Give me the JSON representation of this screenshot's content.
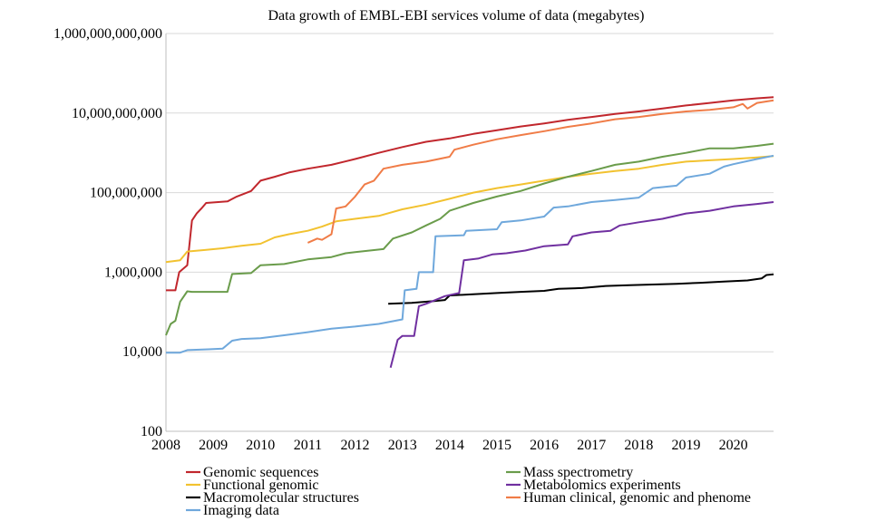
{
  "chart_data": {
    "type": "line",
    "title": "Data growth of EMBL-EBI services volume of data (megabytes)",
    "xlabel": "",
    "ylabel": "",
    "y_scale": "log",
    "ylim": [
      100,
      1000000000000
    ],
    "xlim": [
      2008,
      2020.85
    ],
    "grid": true,
    "legend_position": "bottom",
    "y_ticks": [
      {
        "value": 100,
        "label": "100"
      },
      {
        "value": 10000,
        "label": "10,000"
      },
      {
        "value": 1000000,
        "label": "1,000,000"
      },
      {
        "value": 100000000,
        "label": "100,000,000"
      },
      {
        "value": 10000000000,
        "label": "10,000,000,000"
      },
      {
        "value": 1000000000000,
        "label": "1,000,000,000,000"
      }
    ],
    "x_ticks": [
      {
        "value": 2008,
        "label": "2008"
      },
      {
        "value": 2009,
        "label": "2009"
      },
      {
        "value": 2010,
        "label": "2010"
      },
      {
        "value": 2011,
        "label": "2011"
      },
      {
        "value": 2012,
        "label": "2012"
      },
      {
        "value": 2013,
        "label": "2013"
      },
      {
        "value": 2014,
        "label": "2014"
      },
      {
        "value": 2015,
        "label": "2015"
      },
      {
        "value": 2016,
        "label": "2016"
      },
      {
        "value": 2017,
        "label": "2017"
      },
      {
        "value": 2018,
        "label": "2018"
      },
      {
        "value": 2019,
        "label": "2019"
      },
      {
        "value": 2020,
        "label": "2020"
      }
    ],
    "series": [
      {
        "name": "Genomic sequences",
        "color": "#c1272d",
        "points": [
          [
            2008,
            350000
          ],
          [
            2008.2,
            350000
          ],
          [
            2008.28,
            1000000
          ],
          [
            2008.45,
            1500000
          ],
          [
            2008.55,
            20000000
          ],
          [
            2008.65,
            30000000
          ],
          [
            2008.75,
            40000000
          ],
          [
            2008.85,
            55000000
          ],
          [
            2009.3,
            60000000
          ],
          [
            2009.5,
            80000000
          ],
          [
            2009.8,
            110000000
          ],
          [
            2010.0,
            200000000
          ],
          [
            2010.3,
            250000000
          ],
          [
            2010.6,
            320000000
          ],
          [
            2011.0,
            400000000
          ],
          [
            2011.5,
            500000000
          ],
          [
            2012.0,
            700000000
          ],
          [
            2012.5,
            1000000000
          ],
          [
            2013.0,
            1400000000
          ],
          [
            2013.5,
            1900000000
          ],
          [
            2014.0,
            2300000000
          ],
          [
            2014.5,
            3000000000
          ],
          [
            2015.0,
            3700000000
          ],
          [
            2015.5,
            4600000000
          ],
          [
            2016.0,
            5500000000
          ],
          [
            2016.5,
            6800000000
          ],
          [
            2017.0,
            8000000000
          ],
          [
            2017.5,
            9500000000
          ],
          [
            2018.0,
            11000000000
          ],
          [
            2018.5,
            13000000000
          ],
          [
            2019.0,
            15500000000
          ],
          [
            2019.5,
            18000000000
          ],
          [
            2020.0,
            21000000000
          ],
          [
            2020.5,
            23500000000
          ],
          [
            2020.85,
            25000000000
          ]
        ]
      },
      {
        "name": "Functional genomic",
        "color": "#f2c230",
        "points": [
          [
            2008,
            1800000
          ],
          [
            2008.3,
            2000000
          ],
          [
            2008.45,
            3300000
          ],
          [
            2008.8,
            3600000
          ],
          [
            2009.2,
            4000000
          ],
          [
            2009.6,
            4600000
          ],
          [
            2010.0,
            5200000
          ],
          [
            2010.3,
            7500000
          ],
          [
            2010.6,
            9000000
          ],
          [
            2011.0,
            11000000
          ],
          [
            2011.3,
            14000000
          ],
          [
            2011.6,
            19000000
          ],
          [
            2012.0,
            22000000
          ],
          [
            2012.5,
            26000000
          ],
          [
            2013.0,
            38000000
          ],
          [
            2013.5,
            50000000
          ],
          [
            2014.0,
            70000000
          ],
          [
            2014.5,
            100000000
          ],
          [
            2015.0,
            130000000
          ],
          [
            2015.5,
            160000000
          ],
          [
            2016.0,
            200000000
          ],
          [
            2016.5,
            250000000
          ],
          [
            2017.0,
            300000000
          ],
          [
            2017.5,
            350000000
          ],
          [
            2018.0,
            400000000
          ],
          [
            2018.5,
            500000000
          ],
          [
            2019.0,
            600000000
          ],
          [
            2019.5,
            650000000
          ],
          [
            2020.0,
            700000000
          ],
          [
            2020.5,
            770000000
          ],
          [
            2020.85,
            830000000
          ]
        ]
      },
      {
        "name": "Macromolecular structures",
        "color": "#000000",
        "points": [
          [
            2012.7,
            160000
          ],
          [
            2013.2,
            170000
          ],
          [
            2013.7,
            190000
          ],
          [
            2013.9,
            200000
          ],
          [
            2014.0,
            260000
          ],
          [
            2014.5,
            280000
          ],
          [
            2015.0,
            300000
          ],
          [
            2015.5,
            320000
          ],
          [
            2016.0,
            340000
          ],
          [
            2016.3,
            380000
          ],
          [
            2016.8,
            400000
          ],
          [
            2017.3,
            450000
          ],
          [
            2017.8,
            470000
          ],
          [
            2018.3,
            490000
          ],
          [
            2018.8,
            510000
          ],
          [
            2019.3,
            540000
          ],
          [
            2019.8,
            580000
          ],
          [
            2020.3,
            620000
          ],
          [
            2020.6,
            700000
          ],
          [
            2020.7,
            850000
          ],
          [
            2020.85,
            880000
          ]
        ]
      },
      {
        "name": "Imaging data",
        "color": "#6fa8dc",
        "points": [
          [
            2008,
            9500
          ],
          [
            2008.3,
            9500
          ],
          [
            2008.45,
            11000
          ],
          [
            2008.9,
            11500
          ],
          [
            2009.2,
            12000
          ],
          [
            2009.4,
            19000
          ],
          [
            2009.6,
            21000
          ],
          [
            2010.0,
            22000
          ],
          [
            2010.5,
            26000
          ],
          [
            2011.0,
            31000
          ],
          [
            2011.5,
            38000
          ],
          [
            2012.0,
            43000
          ],
          [
            2012.5,
            50000
          ],
          [
            2013.0,
            65000
          ],
          [
            2013.05,
            350000
          ],
          [
            2013.3,
            380000
          ],
          [
            2013.35,
            1000000
          ],
          [
            2013.65,
            1000000
          ],
          [
            2013.7,
            8000000
          ],
          [
            2014.3,
            8500000
          ],
          [
            2014.35,
            11000000
          ],
          [
            2015.0,
            12000000
          ],
          [
            2015.1,
            18000000
          ],
          [
            2015.5,
            20000000
          ],
          [
            2016.0,
            25000000
          ],
          [
            2016.2,
            42000000
          ],
          [
            2016.5,
            45000000
          ],
          [
            2017.0,
            58000000
          ],
          [
            2017.5,
            65000000
          ],
          [
            2018.0,
            75000000
          ],
          [
            2018.3,
            130000000
          ],
          [
            2018.8,
            150000000
          ],
          [
            2019.0,
            240000000
          ],
          [
            2019.5,
            300000000
          ],
          [
            2019.8,
            450000000
          ],
          [
            2020.0,
            520000000
          ],
          [
            2020.5,
            700000000
          ],
          [
            2020.85,
            850000000
          ]
        ]
      },
      {
        "name": "Mass spectrometry",
        "color": "#6a9c4b",
        "points": [
          [
            2008,
            26000
          ],
          [
            2008.1,
            50000
          ],
          [
            2008.2,
            60000
          ],
          [
            2008.3,
            180000
          ],
          [
            2008.45,
            330000
          ],
          [
            2008.55,
            320000
          ],
          [
            2009.3,
            320000
          ],
          [
            2009.4,
            900000
          ],
          [
            2009.8,
            950000
          ],
          [
            2010.0,
            1500000
          ],
          [
            2010.5,
            1600000
          ],
          [
            2011.0,
            2100000
          ],
          [
            2011.5,
            2400000
          ],
          [
            2011.8,
            3000000
          ],
          [
            2012.0,
            3200000
          ],
          [
            2012.6,
            3800000
          ],
          [
            2012.8,
            7000000
          ],
          [
            2013.2,
            10000000
          ],
          [
            2013.5,
            15000000
          ],
          [
            2013.8,
            22000000
          ],
          [
            2014.0,
            35000000
          ],
          [
            2014.5,
            55000000
          ],
          [
            2015.0,
            80000000
          ],
          [
            2015.5,
            110000000
          ],
          [
            2016.0,
            170000000
          ],
          [
            2016.5,
            250000000
          ],
          [
            2017.0,
            350000000
          ],
          [
            2017.5,
            500000000
          ],
          [
            2018.0,
            600000000
          ],
          [
            2018.5,
            800000000
          ],
          [
            2019.0,
            1000000000
          ],
          [
            2019.5,
            1300000000
          ],
          [
            2020.0,
            1300000000
          ],
          [
            2020.5,
            1500000000
          ],
          [
            2020.85,
            1700000000
          ]
        ]
      },
      {
        "name": "Metabolomics experiments",
        "color": "#7030a0",
        "points": [
          [
            2012.75,
            4000
          ],
          [
            2012.9,
            20000
          ],
          [
            2013.0,
            25000
          ],
          [
            2013.25,
            25000
          ],
          [
            2013.35,
            140000
          ],
          [
            2013.5,
            160000
          ],
          [
            2013.9,
            250000
          ],
          [
            2014.2,
            300000
          ],
          [
            2014.3,
            2000000
          ],
          [
            2014.6,
            2200000
          ],
          [
            2014.9,
            2800000
          ],
          [
            2015.2,
            3000000
          ],
          [
            2015.6,
            3500000
          ],
          [
            2016.0,
            4500000
          ],
          [
            2016.5,
            5000000
          ],
          [
            2016.6,
            8000000
          ],
          [
            2017.0,
            10000000
          ],
          [
            2017.4,
            11000000
          ],
          [
            2017.6,
            15000000
          ],
          [
            2018.0,
            18000000
          ],
          [
            2018.5,
            22000000
          ],
          [
            2019.0,
            30000000
          ],
          [
            2019.5,
            35000000
          ],
          [
            2020.0,
            45000000
          ],
          [
            2020.5,
            52000000
          ],
          [
            2020.85,
            58000000
          ]
        ]
      },
      {
        "name": "Human clinical, genomic and phenome",
        "color": "#f07c47",
        "points": [
          [
            2011.0,
            5500000
          ],
          [
            2011.2,
            7000000
          ],
          [
            2011.3,
            6500000
          ],
          [
            2011.5,
            9000000
          ],
          [
            2011.6,
            40000000
          ],
          [
            2011.8,
            45000000
          ],
          [
            2012.0,
            80000000
          ],
          [
            2012.2,
            160000000
          ],
          [
            2012.4,
            200000000
          ],
          [
            2012.6,
            400000000
          ],
          [
            2013.0,
            500000000
          ],
          [
            2013.5,
            600000000
          ],
          [
            2014.0,
            800000000
          ],
          [
            2014.1,
            1200000000
          ],
          [
            2014.5,
            1600000000
          ],
          [
            2015.0,
            2200000000
          ],
          [
            2015.5,
            2800000000
          ],
          [
            2016.0,
            3500000000
          ],
          [
            2016.5,
            4500000000
          ],
          [
            2017.0,
            5500000000
          ],
          [
            2017.5,
            7000000000
          ],
          [
            2018.0,
            8000000000
          ],
          [
            2018.5,
            9500000000
          ],
          [
            2019.0,
            11000000000
          ],
          [
            2019.5,
            12000000000
          ],
          [
            2020.0,
            14000000000
          ],
          [
            2020.2,
            17000000000
          ],
          [
            2020.3,
            13000000000
          ],
          [
            2020.5,
            18000000000
          ],
          [
            2020.85,
            21000000000
          ]
        ]
      }
    ],
    "legend": [
      {
        "name": "Genomic sequences",
        "color": "#c1272d",
        "column": 0,
        "row": 0
      },
      {
        "name": "Functional genomic",
        "color": "#f2c230",
        "column": 0,
        "row": 1
      },
      {
        "name": "Macromolecular structures",
        "color": "#000000",
        "column": 0,
        "row": 2
      },
      {
        "name": "Imaging data",
        "color": "#6fa8dc",
        "column": 0,
        "row": 3
      },
      {
        "name": "Mass spectrometry",
        "color": "#6a9c4b",
        "column": 1,
        "row": 0
      },
      {
        "name": "Metabolomics experiments",
        "color": "#7030a0",
        "column": 1,
        "row": 1
      },
      {
        "name": "Human clinical, genomic and phenome",
        "color": "#f07c47",
        "column": 1,
        "row": 2
      }
    ]
  }
}
